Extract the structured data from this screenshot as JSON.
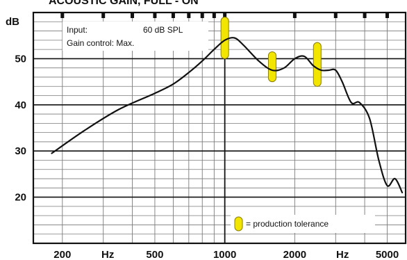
{
  "chart_data": {
    "type": "line",
    "title": "ACOUSTIC GAIN, FULL - ON",
    "ylabel": "dB",
    "x_unit_labels": [
      "Hz",
      "Hz"
    ],
    "x_scale": "log",
    "xlim": [
      150,
      6000
    ],
    "ylim": [
      10,
      60
    ],
    "x_tick_labels": [
      {
        "value": 200,
        "label": "200"
      },
      {
        "value": 500,
        "label": "500"
      },
      {
        "value": 1000,
        "label": "1000"
      },
      {
        "value": 2000,
        "label": "2000"
      },
      {
        "value": 5000,
        "label": "5000"
      }
    ],
    "y_tick_labels": [
      {
        "value": 20,
        "label": "20"
      },
      {
        "value": 30,
        "label": "30"
      },
      {
        "value": 40,
        "label": "40"
      },
      {
        "value": 50,
        "label": "50"
      }
    ],
    "grid": true,
    "annotation": {
      "input_label": "Input:",
      "input_value": "60 dB SPL",
      "gain_text": "Gain control: Max."
    },
    "legend": {
      "position": "bottom-right",
      "label": "= production tolerance",
      "color": "#f2e600"
    },
    "series": [
      {
        "color": "#111111",
        "x": [
          180,
          250,
          350,
          500,
          600,
          700,
          800,
          900,
          1000,
          1100,
          1200,
          1400,
          1600,
          1800,
          2000,
          2200,
          2400,
          2600,
          2800,
          3000,
          3200,
          3500,
          3800,
          4200,
          4600,
          5000,
          5400,
          5800
        ],
        "y": [
          29.5,
          34.5,
          39.0,
          42.5,
          44.5,
          47.0,
          49.5,
          52.0,
          54.0,
          54.5,
          53.0,
          49.5,
          47.5,
          48.0,
          50.0,
          50.5,
          48.5,
          47.5,
          47.5,
          47.5,
          45.0,
          40.5,
          40.5,
          37.0,
          28.0,
          22.5,
          24.0,
          21.0
        ]
      }
    ],
    "tolerance_bars": [
      {
        "x": 1000,
        "low": 50.0,
        "high": 59.0
      },
      {
        "x": 1600,
        "low": 45.0,
        "high": 51.5
      },
      {
        "x": 2500,
        "low": 44.0,
        "high": 53.5
      }
    ]
  }
}
